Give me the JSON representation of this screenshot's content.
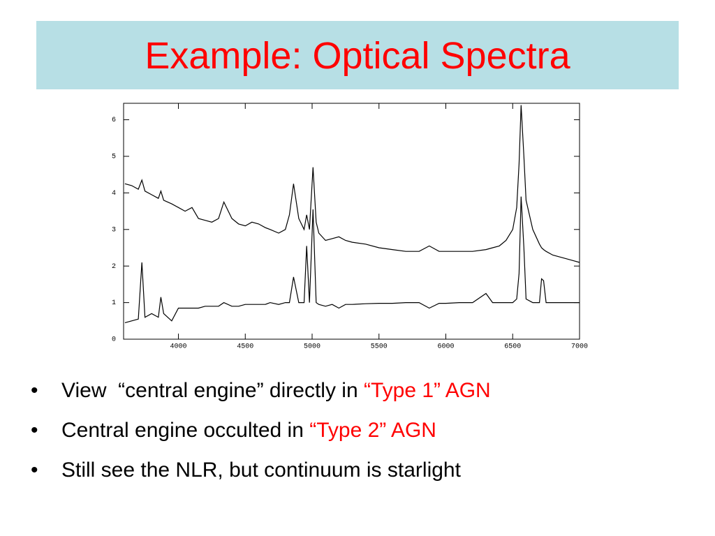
{
  "header": {
    "title": "Example: Optical Spectra"
  },
  "chart_data": {
    "type": "line",
    "x": [
      3600,
      3650,
      3700,
      3727,
      3750,
      3800,
      3850,
      3869,
      3890,
      3950,
      4000,
      4050,
      4102,
      4150,
      4200,
      4250,
      4300,
      4340,
      4400,
      4450,
      4500,
      4550,
      4600,
      4650,
      4686,
      4750,
      4800,
      4830,
      4861,
      4900,
      4940,
      4959,
      4980,
      5007,
      5030,
      5050,
      5100,
      5150,
      5200,
      5250,
      5300,
      5400,
      5500,
      5600,
      5700,
      5800,
      5876,
      5950,
      6000,
      6100,
      6200,
      6300,
      6350,
      6400,
      6450,
      6500,
      6530,
      6548,
      6563,
      6584,
      6600,
      6650,
      6700,
      6716,
      6731,
      6750,
      6800,
      6850,
      6900,
      6950,
      7000
    ],
    "series": [
      {
        "color": "#000000",
        "values": [
          4.25,
          4.2,
          4.1,
          4.35,
          4.05,
          3.95,
          3.85,
          4.05,
          3.8,
          3.7,
          3.6,
          3.5,
          3.6,
          3.3,
          3.25,
          3.2,
          3.3,
          3.75,
          3.3,
          3.15,
          3.1,
          3.2,
          3.15,
          3.05,
          3.0,
          2.9,
          3.0,
          3.4,
          4.25,
          3.3,
          3.0,
          3.4,
          3.0,
          4.7,
          3.2,
          2.9,
          2.7,
          2.75,
          2.8,
          2.7,
          2.65,
          2.6,
          2.5,
          2.45,
          2.4,
          2.4,
          2.55,
          2.4,
          2.4,
          2.4,
          2.4,
          2.45,
          2.5,
          2.55,
          2.7,
          3.0,
          3.6,
          4.8,
          6.4,
          5.0,
          3.8,
          3.0,
          2.6,
          2.5,
          2.45,
          2.4,
          2.3,
          2.25,
          2.2,
          2.15,
          2.1
        ]
      },
      {
        "color": "#000000",
        "values": [
          0.45,
          0.5,
          0.55,
          2.1,
          0.6,
          0.7,
          0.6,
          1.15,
          0.7,
          0.5,
          0.85,
          0.85,
          0.85,
          0.85,
          0.9,
          0.9,
          0.9,
          1.0,
          0.9,
          0.9,
          0.95,
          0.95,
          0.95,
          0.95,
          1.0,
          0.95,
          1.0,
          1.0,
          1.7,
          1.0,
          1.0,
          2.55,
          1.0,
          3.55,
          1.0,
          0.95,
          0.9,
          0.95,
          0.85,
          0.95,
          0.95,
          0.97,
          0.98,
          0.98,
          1.0,
          1.0,
          0.85,
          0.98,
          0.98,
          1.0,
          1.0,
          1.25,
          1.0,
          1.0,
          1.0,
          1.0,
          1.1,
          1.8,
          3.9,
          2.5,
          1.1,
          1.0,
          1.0,
          1.65,
          1.6,
          1.0,
          1.0,
          1.0,
          1.0,
          1.0,
          1.0
        ]
      }
    ],
    "xlim": [
      3590,
      7000
    ],
    "ylim": [
      0,
      6.45
    ],
    "xticks": [
      4000,
      4500,
      5000,
      5500,
      6000,
      6500,
      7000
    ],
    "yticks": [
      0,
      1,
      2,
      3,
      4,
      5,
      6
    ]
  },
  "bullets": [
    [
      "View  “central engine” directly in ",
      "“Type 1” AGN"
    ],
    [
      "Central engine occulted in ",
      "“Type 2” AGN"
    ],
    [
      "Still see the NLR, but continuum is starlight"
    ]
  ]
}
